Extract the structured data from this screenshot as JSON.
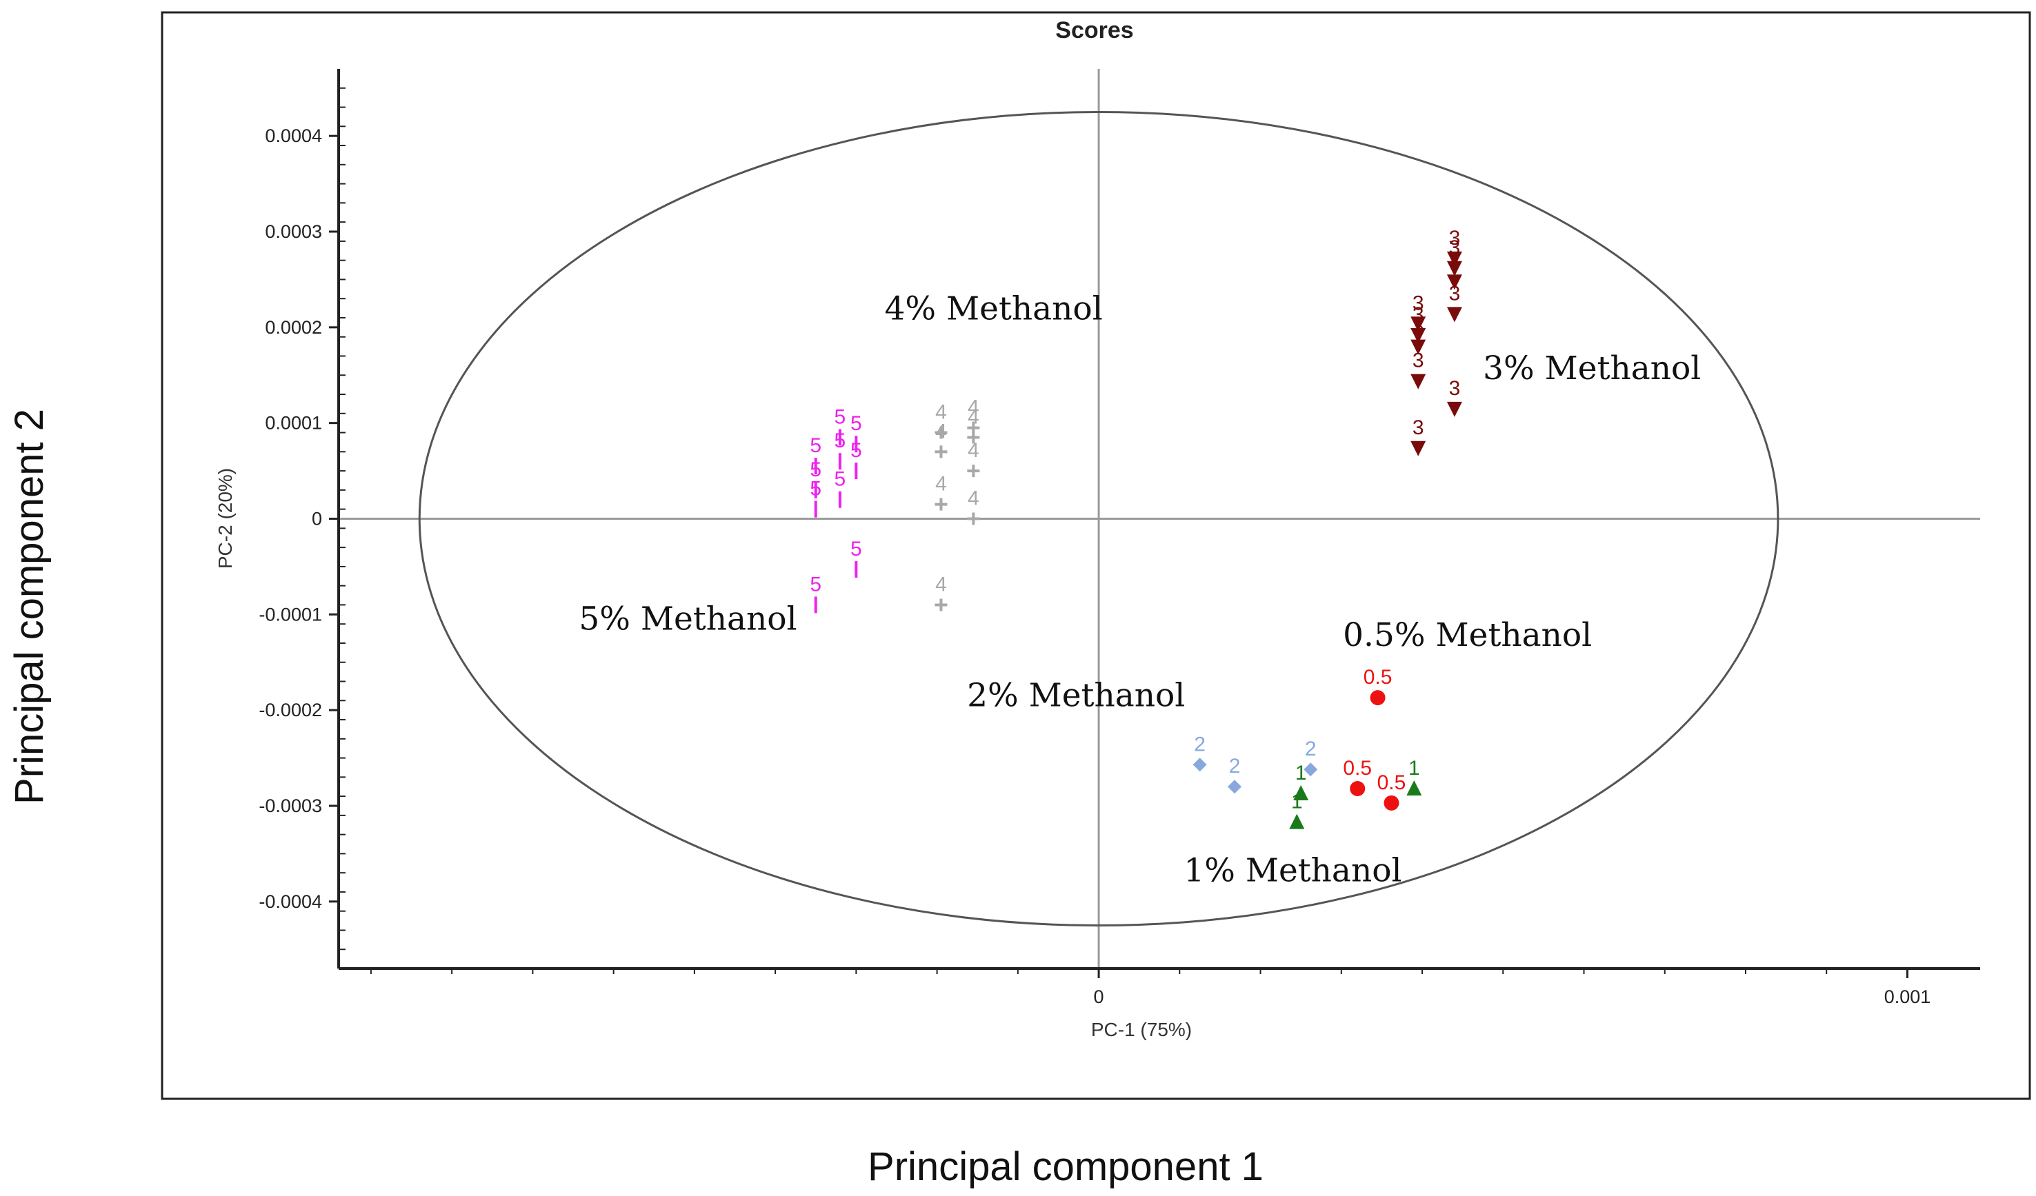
{
  "chart_data": {
    "type": "scatter",
    "title": "Scores",
    "xlabel": "PC-1 (75%)",
    "ylabel": "PC-2 (20%)",
    "outer_xlabel": "Principal component 1",
    "outer_ylabel": "Principal component 2",
    "xlim": [
      -0.00094,
      0.00109
    ],
    "ylim": [
      -0.00047,
      0.00047
    ],
    "x_ticks": [
      {
        "value": 0,
        "label": "0"
      },
      {
        "value": 0.001,
        "label": "0.001"
      }
    ],
    "y_ticks": [
      {
        "value": 0.0004,
        "label": "0.0004"
      },
      {
        "value": 0.0003,
        "label": "0.0003"
      },
      {
        "value": 0.0002,
        "label": "0.0002"
      },
      {
        "value": 0.0001,
        "label": "0.0001"
      },
      {
        "value": 0,
        "label": "0"
      },
      {
        "value": -0.0001,
        "label": "-0.0001"
      },
      {
        "value": -0.0002,
        "label": "-0.0002"
      },
      {
        "value": -0.0003,
        "label": "-0.0003"
      },
      {
        "value": -0.0004,
        "label": "-0.0004"
      }
    ],
    "ellipse": {
      "cx": 0,
      "cy": 0,
      "rx": 0.00084,
      "ry": 0.000425
    },
    "series": [
      {
        "name": "0.5% Methanol",
        "label": "0.5",
        "color": "#ee1111",
        "marker": "circle",
        "points": [
          [
            0.000345,
            -0.000187
          ],
          [
            0.00032,
            -0.000282
          ],
          [
            0.000362,
            -0.000297
          ]
        ]
      },
      {
        "name": "1% Methanol",
        "label": "1",
        "color": "#1a7a1a",
        "marker": "triangle-up",
        "points": [
          [
            0.00025,
            -0.000287
          ],
          [
            0.000245,
            -0.000317
          ],
          [
            0.00039,
            -0.000282
          ]
        ]
      },
      {
        "name": "2% Methanol",
        "label": "2",
        "color": "#88a8dd",
        "marker": "diamond",
        "points": [
          [
            0.000125,
            -0.000257
          ],
          [
            0.000168,
            -0.00028
          ],
          [
            0.000262,
            -0.000262
          ]
        ]
      },
      {
        "name": "3% Methanol",
        "label": "3",
        "color": "#7a0b0b",
        "marker": "triangle-down",
        "points": [
          [
            0.000395,
            7.4e-05
          ],
          [
            0.000395,
            0.000144
          ],
          [
            0.000395,
            0.00018
          ],
          [
            0.000395,
            0.000192
          ],
          [
            0.000395,
            0.000204
          ],
          [
            0.00044,
            0.000115
          ],
          [
            0.00044,
            0.000214
          ],
          [
            0.00044,
            0.000248
          ],
          [
            0.00044,
            0.000262
          ],
          [
            0.00044,
            0.000272
          ]
        ]
      },
      {
        "name": "4% Methanol",
        "label": "4",
        "color": "#a8a8a8",
        "marker": "plus",
        "points": [
          [
            -0.000195,
            -9e-05
          ],
          [
            -0.000195,
            1.5e-05
          ],
          [
            -0.000195,
            7e-05
          ],
          [
            -0.000195,
            9e-05
          ],
          [
            -0.000155,
            0
          ],
          [
            -0.000155,
            5e-05
          ],
          [
            -0.000155,
            8.5e-05
          ],
          [
            -0.000155,
            9.5e-05
          ]
        ]
      },
      {
        "name": "5% Methanol",
        "label": "5",
        "color": "#ee22ee",
        "marker": "tick",
        "points": [
          [
            -0.00035,
            -9e-05
          ],
          [
            -0.00035,
            1e-05
          ],
          [
            -0.00035,
            3e-05
          ],
          [
            -0.00035,
            5.5e-05
          ],
          [
            -0.00032,
            2e-05
          ],
          [
            -0.00032,
            6e-05
          ],
          [
            -0.00032,
            8.5e-05
          ],
          [
            -0.0003,
            -5.3e-05
          ],
          [
            -0.0003,
            5e-05
          ],
          [
            -0.0003,
            7.8e-05
          ]
        ]
      }
    ],
    "annotations": [
      {
        "text": "4% Methanol",
        "x": -0.00013,
        "y": 0.000208
      },
      {
        "text": "3% Methanol",
        "x": 0.00061,
        "y": 0.000146
      },
      {
        "text": "5% Methanol",
        "x": -0.000508,
        "y": -0.000116
      },
      {
        "text": "0.5% Methanol",
        "x": 0.000456,
        "y": -0.000133
      },
      {
        "text": "2% Methanol",
        "x": -2.8e-05,
        "y": -0.000196
      },
      {
        "text": "1% Methanol",
        "x": 0.00024,
        "y": -0.000379
      }
    ]
  }
}
